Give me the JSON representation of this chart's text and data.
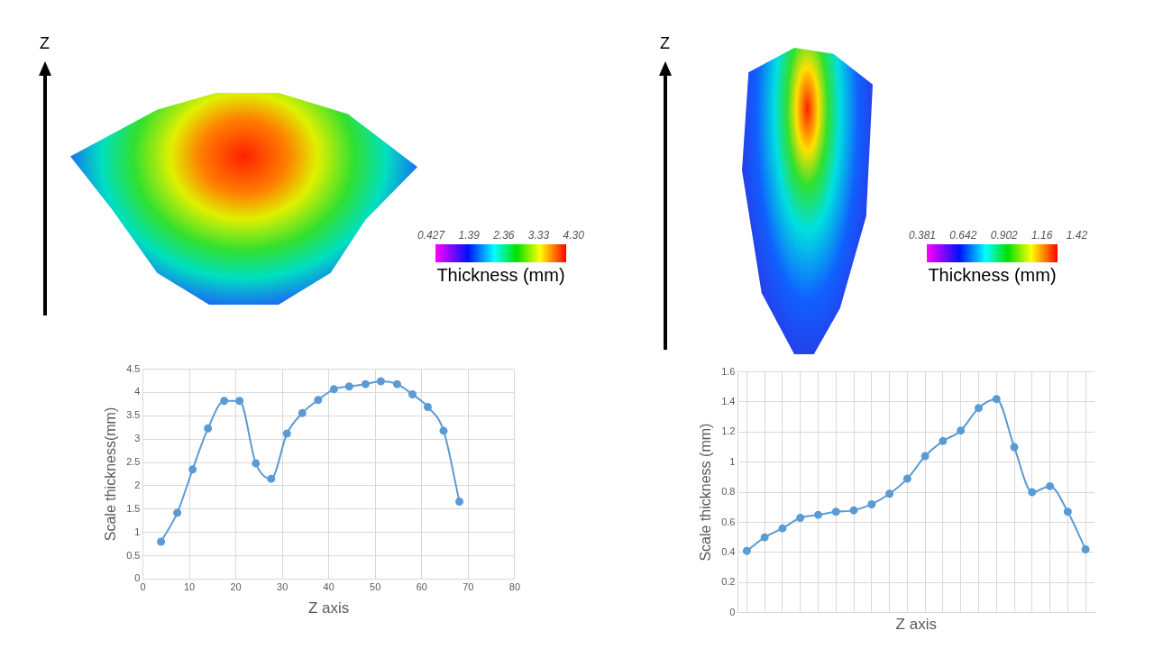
{
  "chart_data": [
    {
      "type": "other",
      "ylabel": "Z",
      "clabel": "Thickness (mm)",
      "annotations": [
        "0.427 1.39 2.36 3.33 4.30"
      ]
    },
    {
      "type": "other",
      "ylabel": "Z",
      "clabel": "Thickness (mm)",
      "annotations": [
        "0.381 0.642 0.902 1.16 1.42"
      ]
    },
    {
      "type": "line",
      "xlabel": "Z axis",
      "ylabel": "Scale thickness(mm)",
      "color": "#5b9bd5",
      "marker": "circle",
      "grid": true,
      "x": [
        3.9,
        7.4,
        10.7,
        14.0,
        17.5,
        20.8,
        24.3,
        27.6,
        31.0,
        34.3,
        37.7,
        41.1,
        44.4,
        47.9,
        51.2,
        54.7,
        58.0,
        61.3,
        64.7,
        68.1
      ],
      "values": [
        0.8,
        1.42,
        2.35,
        3.23,
        3.82,
        3.82,
        2.48,
        2.15,
        3.12,
        3.56,
        3.84,
        4.07,
        4.13,
        4.18,
        4.24,
        4.18,
        3.96,
        3.69,
        3.18,
        1.66
      ],
      "xlim": [
        0,
        80
      ],
      "xticks": [
        0,
        10,
        20,
        30,
        40,
        50,
        60,
        70,
        80
      ],
      "ylim": [
        0,
        4.5
      ],
      "yticks": [
        0,
        0.5,
        1,
        1.5,
        2,
        2.5,
        3,
        3.5,
        4,
        4.5
      ]
    },
    {
      "type": "line",
      "xlabel": "Z axis",
      "ylabel": "Scale thickness (mm)",
      "color": "#5b9bd5",
      "marker": "circle",
      "grid": true,
      "tick_labels": "y",
      "categories": [
        null,
        null,
        null,
        null,
        null,
        null,
        null,
        null,
        null,
        null,
        null,
        null,
        null,
        null,
        null,
        null,
        null,
        null,
        null,
        null
      ],
      "values": [
        0.41,
        0.5,
        0.56,
        0.63,
        0.65,
        0.67,
        0.68,
        0.72,
        0.79,
        0.89,
        1.04,
        1.14,
        1.21,
        1.36,
        1.42,
        1.1,
        0.8,
        0.84,
        0.67,
        0.42
      ],
      "ylim": [
        0,
        1.6
      ],
      "yticks": [
        0,
        0.2,
        0.4,
        0.6,
        0.8,
        1,
        1.2,
        1.4,
        1.6
      ]
    }
  ]
}
